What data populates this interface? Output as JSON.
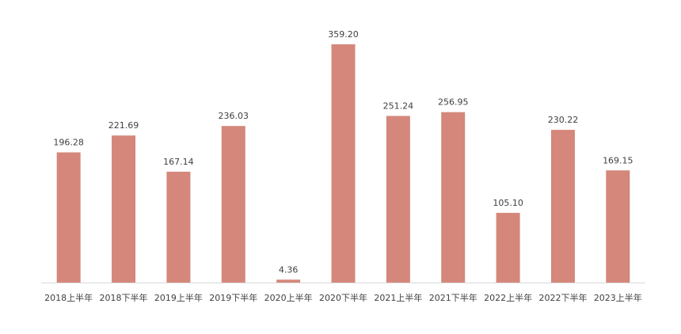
{
  "chart_data": {
    "type": "bar",
    "categories": [
      "2018上半年",
      "2018下半年",
      "2019上半年",
      "2019下半年",
      "2020上半年",
      "2020下半年",
      "2021上半年",
      "2021下半年",
      "2022上半年",
      "2022下半年",
      "2023上半年"
    ],
    "values": [
      196.28,
      221.69,
      167.14,
      236.03,
      4.36,
      359.2,
      251.24,
      256.95,
      105.1,
      230.22,
      169.15
    ],
    "value_labels": [
      "196.28",
      "221.69",
      "167.14",
      "236.03",
      "4.36",
      "359.20",
      "251.24",
      "256.95",
      "105.10",
      "230.22",
      "169.15"
    ],
    "color": "#d4877a"
  }
}
